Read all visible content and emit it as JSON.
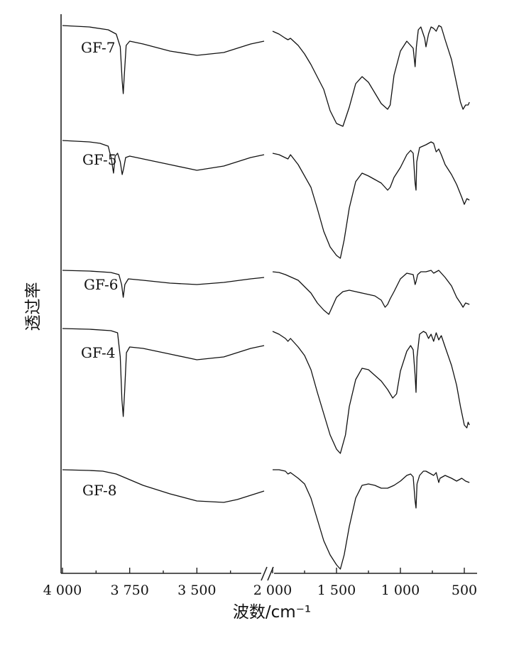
{
  "chart_data": {
    "type": "line",
    "title": "",
    "xlabel": "波数/cm⁻¹",
    "ylabel": "透过率",
    "x_reversed": true,
    "x_axis_break": "between 3250 and 2000",
    "x_segments": [
      {
        "range": [
          4000,
          3250
        ],
        "ticks": [
          4000,
          3750,
          3500
        ],
        "tick_labels": [
          "4 000",
          "3 750",
          "3 500"
        ]
      },
      {
        "range": [
          2000,
          400
        ],
        "ticks": [
          2000,
          1500,
          1000,
          500
        ],
        "tick_labels": [
          "2 000",
          "1 500",
          "1 000",
          "500"
        ]
      }
    ],
    "y_ticks": "none",
    "series": [
      {
        "name": "GF-7",
        "baseline": 0.0,
        "depth_scale": 1.0,
        "segment1": [
          [
            4000,
            0
          ],
          [
            3900,
            2
          ],
          [
            3830,
            6
          ],
          [
            3800,
            12
          ],
          [
            3785,
            30
          ],
          [
            3778,
            78
          ],
          [
            3774,
            96
          ],
          [
            3770,
            70
          ],
          [
            3763,
            28
          ],
          [
            3750,
            22
          ],
          [
            3700,
            26
          ],
          [
            3600,
            36
          ],
          [
            3500,
            42
          ],
          [
            3400,
            38
          ],
          [
            3300,
            26
          ],
          [
            3250,
            22
          ]
        ],
        "segment2": [
          [
            2000,
            8
          ],
          [
            1950,
            12
          ],
          [
            1900,
            18
          ],
          [
            1880,
            20
          ],
          [
            1860,
            18
          ],
          [
            1800,
            28
          ],
          [
            1750,
            40
          ],
          [
            1700,
            55
          ],
          [
            1600,
            90
          ],
          [
            1550,
            120
          ],
          [
            1500,
            138
          ],
          [
            1450,
            142
          ],
          [
            1400,
            115
          ],
          [
            1350,
            82
          ],
          [
            1300,
            72
          ],
          [
            1250,
            80
          ],
          [
            1200,
            95
          ],
          [
            1150,
            110
          ],
          [
            1100,
            118
          ],
          [
            1080,
            112
          ],
          [
            1050,
            70
          ],
          [
            1000,
            36
          ],
          [
            950,
            22
          ],
          [
            900,
            32
          ],
          [
            885,
            58
          ],
          [
            875,
            30
          ],
          [
            860,
            6
          ],
          [
            840,
            2
          ],
          [
            810,
            18
          ],
          [
            800,
            30
          ],
          [
            780,
            12
          ],
          [
            760,
            2
          ],
          [
            740,
            4
          ],
          [
            720,
            8
          ],
          [
            700,
            0
          ],
          [
            680,
            2
          ],
          [
            650,
            20
          ],
          [
            600,
            48
          ],
          [
            560,
            82
          ],
          [
            530,
            108
          ],
          [
            510,
            118
          ],
          [
            490,
            112
          ],
          [
            470,
            112
          ],
          [
            460,
            108
          ]
        ]
      },
      {
        "name": "GF-5",
        "baseline": 0.0,
        "depth_scale": 1.0,
        "segment1": [
          [
            4000,
            0
          ],
          [
            3900,
            2
          ],
          [
            3860,
            4
          ],
          [
            3830,
            8
          ],
          [
            3818,
            26
          ],
          [
            3810,
            46
          ],
          [
            3804,
            22
          ],
          [
            3795,
            18
          ],
          [
            3785,
            30
          ],
          [
            3778,
            48
          ],
          [
            3773,
            40
          ],
          [
            3765,
            24
          ],
          [
            3750,
            22
          ],
          [
            3700,
            26
          ],
          [
            3600,
            34
          ],
          [
            3500,
            42
          ],
          [
            3400,
            36
          ],
          [
            3300,
            24
          ],
          [
            3250,
            20
          ]
        ],
        "segment2": [
          [
            2000,
            18
          ],
          [
            1950,
            20
          ],
          [
            1880,
            26
          ],
          [
            1860,
            20
          ],
          [
            1800,
            34
          ],
          [
            1700,
            66
          ],
          [
            1650,
            96
          ],
          [
            1600,
            128
          ],
          [
            1550,
            150
          ],
          [
            1500,
            162
          ],
          [
            1470,
            166
          ],
          [
            1440,
            140
          ],
          [
            1400,
            95
          ],
          [
            1350,
            58
          ],
          [
            1300,
            46
          ],
          [
            1250,
            50
          ],
          [
            1200,
            55
          ],
          [
            1150,
            60
          ],
          [
            1100,
            70
          ],
          [
            1080,
            66
          ],
          [
            1050,
            52
          ],
          [
            1000,
            38
          ],
          [
            950,
            20
          ],
          [
            920,
            14
          ],
          [
            900,
            18
          ],
          [
            885,
            60
          ],
          [
            878,
            70
          ],
          [
            872,
            30
          ],
          [
            850,
            10
          ],
          [
            800,
            6
          ],
          [
            760,
            2
          ],
          [
            740,
            4
          ],
          [
            720,
            16
          ],
          [
            700,
            12
          ],
          [
            680,
            20
          ],
          [
            650,
            34
          ],
          [
            600,
            48
          ],
          [
            560,
            62
          ],
          [
            520,
            80
          ],
          [
            500,
            90
          ],
          [
            480,
            82
          ],
          [
            460,
            84
          ]
        ]
      },
      {
        "name": "GF-6",
        "baseline": 0.0,
        "depth_scale": 1.0,
        "segment1": [
          [
            4000,
            0
          ],
          [
            3900,
            1
          ],
          [
            3820,
            3
          ],
          [
            3790,
            6
          ],
          [
            3780,
            20
          ],
          [
            3774,
            38
          ],
          [
            3768,
            20
          ],
          [
            3755,
            12
          ],
          [
            3700,
            14
          ],
          [
            3600,
            18
          ],
          [
            3500,
            20
          ],
          [
            3400,
            17
          ],
          [
            3300,
            12
          ],
          [
            3250,
            10
          ]
        ],
        "segment2": [
          [
            2000,
            2
          ],
          [
            1950,
            3
          ],
          [
            1900,
            6
          ],
          [
            1850,
            10
          ],
          [
            1800,
            14
          ],
          [
            1700,
            32
          ],
          [
            1650,
            46
          ],
          [
            1600,
            56
          ],
          [
            1560,
            62
          ],
          [
            1530,
            50
          ],
          [
            1500,
            38
          ],
          [
            1450,
            30
          ],
          [
            1400,
            28
          ],
          [
            1350,
            30
          ],
          [
            1300,
            32
          ],
          [
            1250,
            34
          ],
          [
            1200,
            36
          ],
          [
            1150,
            42
          ],
          [
            1120,
            52
          ],
          [
            1100,
            48
          ],
          [
            1080,
            40
          ],
          [
            1050,
            30
          ],
          [
            1000,
            12
          ],
          [
            950,
            4
          ],
          [
            900,
            6
          ],
          [
            885,
            20
          ],
          [
            878,
            16
          ],
          [
            865,
            6
          ],
          [
            840,
            2
          ],
          [
            800,
            2
          ],
          [
            760,
            0
          ],
          [
            740,
            4
          ],
          [
            720,
            2
          ],
          [
            700,
            0
          ],
          [
            650,
            10
          ],
          [
            600,
            22
          ],
          [
            560,
            38
          ],
          [
            530,
            46
          ],
          [
            510,
            52
          ],
          [
            490,
            46
          ],
          [
            460,
            48
          ]
        ]
      },
      {
        "name": "GF-4",
        "baseline": 0.0,
        "depth_scale": 1.0,
        "segment1": [
          [
            4000,
            0
          ],
          [
            3900,
            1
          ],
          [
            3820,
            3
          ],
          [
            3795,
            6
          ],
          [
            3785,
            40
          ],
          [
            3779,
            100
          ],
          [
            3774,
            124
          ],
          [
            3769,
            90
          ],
          [
            3762,
            34
          ],
          [
            3750,
            26
          ],
          [
            3700,
            28
          ],
          [
            3600,
            36
          ],
          [
            3500,
            44
          ],
          [
            3400,
            40
          ],
          [
            3300,
            28
          ],
          [
            3250,
            24
          ]
        ],
        "segment2": [
          [
            2000,
            4
          ],
          [
            1950,
            8
          ],
          [
            1900,
            14
          ],
          [
            1880,
            18
          ],
          [
            1860,
            14
          ],
          [
            1800,
            26
          ],
          [
            1750,
            38
          ],
          [
            1700,
            58
          ],
          [
            1650,
            90
          ],
          [
            1600,
            120
          ],
          [
            1550,
            150
          ],
          [
            1500,
            170
          ],
          [
            1470,
            176
          ],
          [
            1430,
            150
          ],
          [
            1400,
            110
          ],
          [
            1350,
            72
          ],
          [
            1300,
            56
          ],
          [
            1250,
            58
          ],
          [
            1200,
            66
          ],
          [
            1150,
            74
          ],
          [
            1100,
            86
          ],
          [
            1060,
            98
          ],
          [
            1030,
            92
          ],
          [
            1000,
            60
          ],
          [
            950,
            32
          ],
          [
            920,
            24
          ],
          [
            900,
            30
          ],
          [
            885,
            66
          ],
          [
            878,
            90
          ],
          [
            870,
            40
          ],
          [
            850,
            8
          ],
          [
            820,
            4
          ],
          [
            800,
            6
          ],
          [
            780,
            14
          ],
          [
            760,
            8
          ],
          [
            740,
            18
          ],
          [
            720,
            6
          ],
          [
            700,
            16
          ],
          [
            680,
            10
          ],
          [
            650,
            26
          ],
          [
            600,
            52
          ],
          [
            560,
            80
          ],
          [
            530,
            110
          ],
          [
            500,
            136
          ],
          [
            480,
            140
          ],
          [
            470,
            132
          ],
          [
            460,
            136
          ]
        ]
      },
      {
        "name": "GF-8",
        "baseline": 0.0,
        "depth_scale": 1.0,
        "segment1": [
          [
            4000,
            0
          ],
          [
            3900,
            1
          ],
          [
            3850,
            2
          ],
          [
            3800,
            6
          ],
          [
            3750,
            14
          ],
          [
            3700,
            22
          ],
          [
            3600,
            34
          ],
          [
            3500,
            44
          ],
          [
            3400,
            46
          ],
          [
            3350,
            42
          ],
          [
            3300,
            36
          ],
          [
            3250,
            30
          ]
        ],
        "segment2": [
          [
            2000,
            0
          ],
          [
            1950,
            0
          ],
          [
            1900,
            2
          ],
          [
            1880,
            6
          ],
          [
            1860,
            4
          ],
          [
            1800,
            12
          ],
          [
            1750,
            20
          ],
          [
            1700,
            40
          ],
          [
            1650,
            70
          ],
          [
            1600,
            100
          ],
          [
            1550,
            120
          ],
          [
            1500,
            134
          ],
          [
            1470,
            140
          ],
          [
            1440,
            120
          ],
          [
            1400,
            80
          ],
          [
            1350,
            40
          ],
          [
            1300,
            22
          ],
          [
            1250,
            20
          ],
          [
            1200,
            22
          ],
          [
            1150,
            26
          ],
          [
            1100,
            26
          ],
          [
            1050,
            22
          ],
          [
            1000,
            16
          ],
          [
            950,
            8
          ],
          [
            920,
            6
          ],
          [
            900,
            10
          ],
          [
            885,
            44
          ],
          [
            878,
            54
          ],
          [
            870,
            20
          ],
          [
            850,
            8
          ],
          [
            820,
            2
          ],
          [
            800,
            2
          ],
          [
            780,
            4
          ],
          [
            760,
            6
          ],
          [
            740,
            8
          ],
          [
            720,
            4
          ],
          [
            700,
            18
          ],
          [
            690,
            12
          ],
          [
            650,
            8
          ],
          [
            600,
            12
          ],
          [
            560,
            16
          ],
          [
            520,
            12
          ],
          [
            490,
            16
          ],
          [
            460,
            18
          ]
        ]
      }
    ],
    "series_label_offsets_px_note": "labels printed beside each trace"
  }
}
